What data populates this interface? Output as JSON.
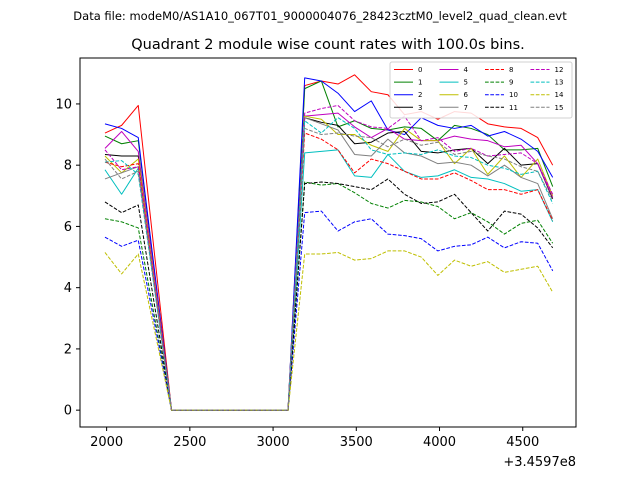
{
  "figure": {
    "suptitle": "Data file: modeM0/AS1A10_067T01_9000004076_28423cztM0_level2_quad_clean.evt",
    "x_offset_label": "+3.4597e8"
  },
  "chart_data": {
    "type": "line",
    "title": "Quadrant 2 module wise count rates with 100.0s bins.",
    "xlabel": "",
    "ylabel": "",
    "x_offset": 345970000,
    "xlim": [
      1840,
      4820
    ],
    "ylim": [
      -0.55,
      11.5
    ],
    "xticks": [
      2000,
      2500,
      3000,
      3500,
      4000,
      4500
    ],
    "yticks": [
      0,
      2,
      4,
      6,
      8,
      10
    ],
    "grid": false,
    "legend": {
      "placement": "top-right",
      "columns": 4
    },
    "x": [
      1990,
      2090,
      2190,
      2390,
      2490,
      2590,
      2690,
      2790,
      2890,
      2990,
      3090,
      3190,
      3290,
      3390,
      3490,
      3590,
      3690,
      3790,
      3890,
      3990,
      4090,
      4190,
      4290,
      4390,
      4490,
      4590,
      4680
    ],
    "series": [
      {
        "name": "0",
        "color": "#ff0000",
        "dash": "solid",
        "values": [
          9.05,
          9.3,
          9.95,
          0,
          0,
          0,
          0,
          0,
          0,
          0,
          0,
          10.6,
          10.75,
          10.65,
          10.95,
          10.4,
          10.3,
          9.65,
          9.75,
          9.5,
          9.75,
          9.7,
          9.35,
          9.25,
          9.2,
          8.9,
          8.0
        ]
      },
      {
        "name": "1",
        "color": "#008000",
        "dash": "solid",
        "values": [
          8.95,
          8.7,
          8.8,
          0,
          0,
          0,
          0,
          0,
          0,
          0,
          0,
          10.5,
          10.75,
          9.25,
          9.45,
          9.2,
          9.15,
          9.25,
          9.2,
          8.8,
          9.3,
          9.2,
          9.0,
          8.5,
          8.5,
          8.55,
          7.3
        ]
      },
      {
        "name": "2",
        "color": "#0000ff",
        "dash": "solid",
        "values": [
          9.35,
          9.2,
          8.9,
          0,
          0,
          0,
          0,
          0,
          0,
          0,
          0,
          10.85,
          10.75,
          10.35,
          9.75,
          10.1,
          9.15,
          9.0,
          9.55,
          9.3,
          9.2,
          9.3,
          8.95,
          9.1,
          8.85,
          8.45,
          7.6
        ]
      },
      {
        "name": "3",
        "color": "#000000",
        "dash": "solid",
        "values": [
          8.35,
          8.3,
          8.3,
          0,
          0,
          0,
          0,
          0,
          0,
          0,
          0,
          9.55,
          9.4,
          9.3,
          8.7,
          8.75,
          9.05,
          9.1,
          8.45,
          8.4,
          8.5,
          8.55,
          8.05,
          8.55,
          8.0,
          8.05,
          6.9
        ]
      },
      {
        "name": "4",
        "color": "#bf00bf",
        "dash": "solid",
        "values": [
          8.55,
          9.1,
          8.45,
          0,
          0,
          0,
          0,
          0,
          0,
          0,
          0,
          9.6,
          9.65,
          9.7,
          9.25,
          8.9,
          9.2,
          8.85,
          8.8,
          8.8,
          8.95,
          8.85,
          8.8,
          8.6,
          8.65,
          8.05,
          6.95
        ]
      },
      {
        "name": "5",
        "color": "#00bfbf",
        "dash": "solid",
        "values": [
          7.85,
          7.05,
          7.9,
          0,
          0,
          0,
          0,
          0,
          0,
          0,
          0,
          8.4,
          8.45,
          8.5,
          7.65,
          7.6,
          8.35,
          7.8,
          7.6,
          7.65,
          7.85,
          7.6,
          7.55,
          7.4,
          7.15,
          7.2,
          6.15
        ]
      },
      {
        "name": "6",
        "color": "#bfbf00",
        "dash": "solid",
        "values": [
          8.3,
          7.75,
          8.2,
          0,
          0,
          0,
          0,
          0,
          0,
          0,
          0,
          9.6,
          9.5,
          9.0,
          9.0,
          8.65,
          8.45,
          9.2,
          8.8,
          8.8,
          8.05,
          8.55,
          7.7,
          8.3,
          7.6,
          8.2,
          7.0
        ]
      },
      {
        "name": "7",
        "color": "#808080",
        "dash": "solid",
        "values": [
          7.55,
          7.75,
          7.95,
          0,
          0,
          0,
          0,
          0,
          0,
          0,
          0,
          9.55,
          9.35,
          9.15,
          8.35,
          8.3,
          8.85,
          8.4,
          8.3,
          8.05,
          8.1,
          8.0,
          7.65,
          8.0,
          7.6,
          7.4,
          6.25
        ]
      },
      {
        "name": "8",
        "color": "#ff0000",
        "dash": "dashed",
        "values": [
          8.1,
          7.95,
          8.05,
          0,
          0,
          0,
          0,
          0,
          0,
          0,
          0,
          9.05,
          8.85,
          8.5,
          7.75,
          8.2,
          8.05,
          7.8,
          7.55,
          7.55,
          7.75,
          7.5,
          7.2,
          7.2,
          7.05,
          7.2,
          6.2
        ]
      },
      {
        "name": "9",
        "color": "#008000",
        "dash": "dashed",
        "values": [
          6.25,
          6.15,
          5.95,
          0,
          0,
          0,
          0,
          0,
          0,
          0,
          0,
          7.45,
          7.35,
          7.4,
          7.1,
          6.75,
          6.6,
          6.85,
          6.8,
          6.65,
          6.25,
          6.45,
          6.15,
          5.75,
          6.1,
          6.2,
          5.45
        ]
      },
      {
        "name": "10",
        "color": "#0000ff",
        "dash": "dashed",
        "values": [
          5.65,
          5.35,
          5.55,
          0,
          0,
          0,
          0,
          0,
          0,
          0,
          0,
          6.45,
          6.5,
          5.85,
          6.15,
          6.25,
          5.75,
          5.7,
          5.6,
          5.2,
          5.35,
          5.4,
          5.65,
          5.3,
          5.5,
          5.45,
          4.55
        ]
      },
      {
        "name": "11",
        "color": "#000000",
        "dash": "dashed",
        "values": [
          6.8,
          6.45,
          6.7,
          0,
          0,
          0,
          0,
          0,
          0,
          0,
          0,
          7.4,
          7.45,
          7.4,
          7.3,
          7.2,
          7.55,
          7.05,
          6.75,
          6.8,
          7.05,
          6.45,
          5.85,
          6.5,
          6.4,
          5.95,
          5.3
        ]
      },
      {
        "name": "12",
        "color": "#bf00bf",
        "dash": "dashed",
        "values": [
          8.5,
          7.85,
          7.95,
          0,
          0,
          0,
          0,
          0,
          0,
          0,
          0,
          9.7,
          9.85,
          9.95,
          9.45,
          9.25,
          9.2,
          9.6,
          8.8,
          8.9,
          8.45,
          8.55,
          8.3,
          8.35,
          8.4,
          8.05,
          7.05
        ]
      },
      {
        "name": "13",
        "color": "#00bfbf",
        "dash": "dashed",
        "values": [
          8.1,
          8.15,
          7.7,
          0,
          0,
          0,
          0,
          0,
          0,
          0,
          0,
          9.45,
          9.05,
          9.55,
          9.2,
          8.5,
          8.35,
          8.4,
          8.35,
          8.5,
          8.3,
          8.25,
          8.0,
          7.9,
          7.7,
          7.8,
          6.75
        ]
      },
      {
        "name": "14",
        "color": "#bfbf00",
        "dash": "dashed",
        "values": [
          5.15,
          4.45,
          5.1,
          0,
          0,
          0,
          0,
          0,
          0,
          0,
          0,
          5.1,
          5.1,
          5.15,
          4.9,
          4.95,
          5.2,
          5.2,
          5.0,
          4.4,
          4.9,
          4.7,
          4.85,
          4.5,
          4.6,
          4.7,
          3.85
        ]
      },
      {
        "name": "15",
        "color": "#808080",
        "dash": "dashed",
        "values": [
          8.2,
          7.55,
          7.8,
          0,
          0,
          0,
          0,
          0,
          0,
          0,
          0,
          9.2,
          9.0,
          9.05,
          8.95,
          8.9,
          8.6,
          8.85,
          8.65,
          8.75,
          8.35,
          8.45,
          8.3,
          8.2,
          7.95,
          7.8,
          6.85
        ]
      }
    ]
  }
}
